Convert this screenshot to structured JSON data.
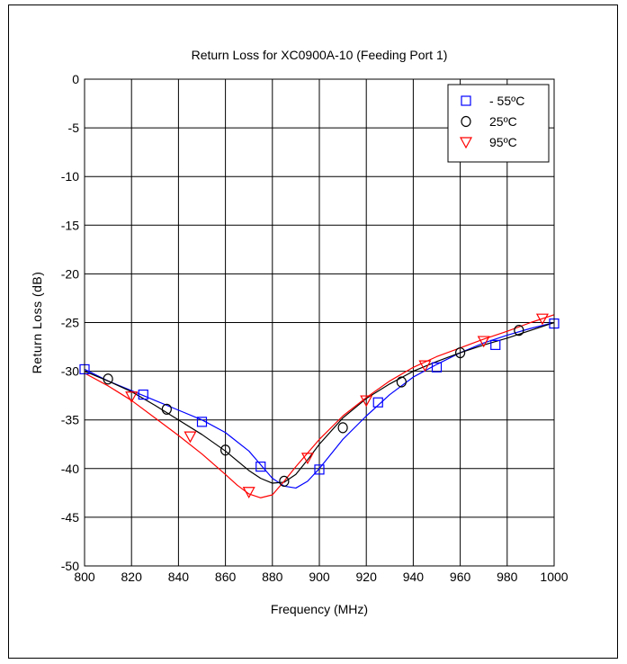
{
  "chart_data": {
    "type": "line",
    "title": "Return Loss for XC0900A-10 (Feeding Port 1)",
    "xlabel": "Frequency (MHz)",
    "ylabel": "Return Loss (dB)",
    "xlim": [
      800,
      1000
    ],
    "ylim": [
      -50,
      0
    ],
    "xticks": [
      800,
      820,
      840,
      860,
      880,
      900,
      920,
      940,
      960,
      980,
      1000
    ],
    "yticks": [
      0,
      -5,
      -10,
      -15,
      -20,
      -25,
      -30,
      -35,
      -40,
      -45,
      -50
    ],
    "grid": true,
    "legend_position": "top-right",
    "series": [
      {
        "name": "- 55ºC",
        "color": "#0000ff",
        "marker": "square",
        "x": [
          800,
          810,
          820,
          830,
          840,
          850,
          860,
          870,
          875,
          880,
          885,
          890,
          895,
          900,
          910,
          920,
          930,
          940,
          950,
          960,
          970,
          980,
          990,
          1000
        ],
        "y": [
          -29.8,
          -31.0,
          -32.0,
          -33.0,
          -34.0,
          -35.0,
          -36.3,
          -38.2,
          -39.6,
          -41.0,
          -41.8,
          -42.0,
          -41.3,
          -40.0,
          -37.0,
          -34.6,
          -32.4,
          -30.6,
          -29.3,
          -28.1,
          -27.1,
          -26.3,
          -25.6,
          -25.0
        ],
        "marker_x": [
          800,
          825,
          850,
          875,
          900,
          925,
          950,
          975,
          1000
        ],
        "marker_y": [
          -29.8,
          -32.4,
          -35.2,
          -39.8,
          -40.1,
          -33.2,
          -29.6,
          -27.3,
          -25.1
        ]
      },
      {
        "name": "25ºC",
        "color": "#000000",
        "marker": "circle",
        "x": [
          800,
          810,
          820,
          830,
          840,
          850,
          860,
          870,
          875,
          880,
          885,
          890,
          895,
          900,
          910,
          920,
          930,
          940,
          950,
          960,
          970,
          980,
          990,
          1000
        ],
        "y": [
          -30.0,
          -31.0,
          -32.1,
          -33.5,
          -35.0,
          -36.5,
          -38.2,
          -40.2,
          -41.0,
          -41.5,
          -41.4,
          -40.6,
          -39.1,
          -37.5,
          -34.8,
          -32.8,
          -31.3,
          -30.0,
          -29.0,
          -28.1,
          -27.3,
          -26.6,
          -25.8,
          -25.0
        ],
        "marker_x": [
          810,
          835,
          860,
          885,
          910,
          935,
          960,
          985
        ],
        "marker_y": [
          -30.8,
          -33.9,
          -38.1,
          -41.3,
          -35.8,
          -31.1,
          -28.1,
          -25.8
        ]
      },
      {
        "name": "95ºC",
        "color": "#ff0000",
        "marker": "triangle-down",
        "x": [
          800,
          810,
          820,
          830,
          840,
          850,
          860,
          865,
          870,
          875,
          880,
          885,
          890,
          900,
          910,
          920,
          930,
          940,
          950,
          960,
          970,
          980,
          990,
          1000
        ],
        "y": [
          -30.2,
          -31.5,
          -33.0,
          -34.8,
          -36.6,
          -38.5,
          -40.6,
          -41.7,
          -42.6,
          -43.0,
          -42.7,
          -41.3,
          -39.8,
          -37.0,
          -34.6,
          -32.7,
          -31.0,
          -29.6,
          -28.5,
          -27.6,
          -26.7,
          -25.9,
          -25.0,
          -24.2
        ],
        "marker_x": [
          820,
          845,
          870,
          895,
          920,
          945,
          970,
          995
        ],
        "marker_y": [
          -32.6,
          -36.7,
          -42.4,
          -38.9,
          -33.0,
          -29.4,
          -26.9,
          -24.6
        ]
      }
    ]
  }
}
